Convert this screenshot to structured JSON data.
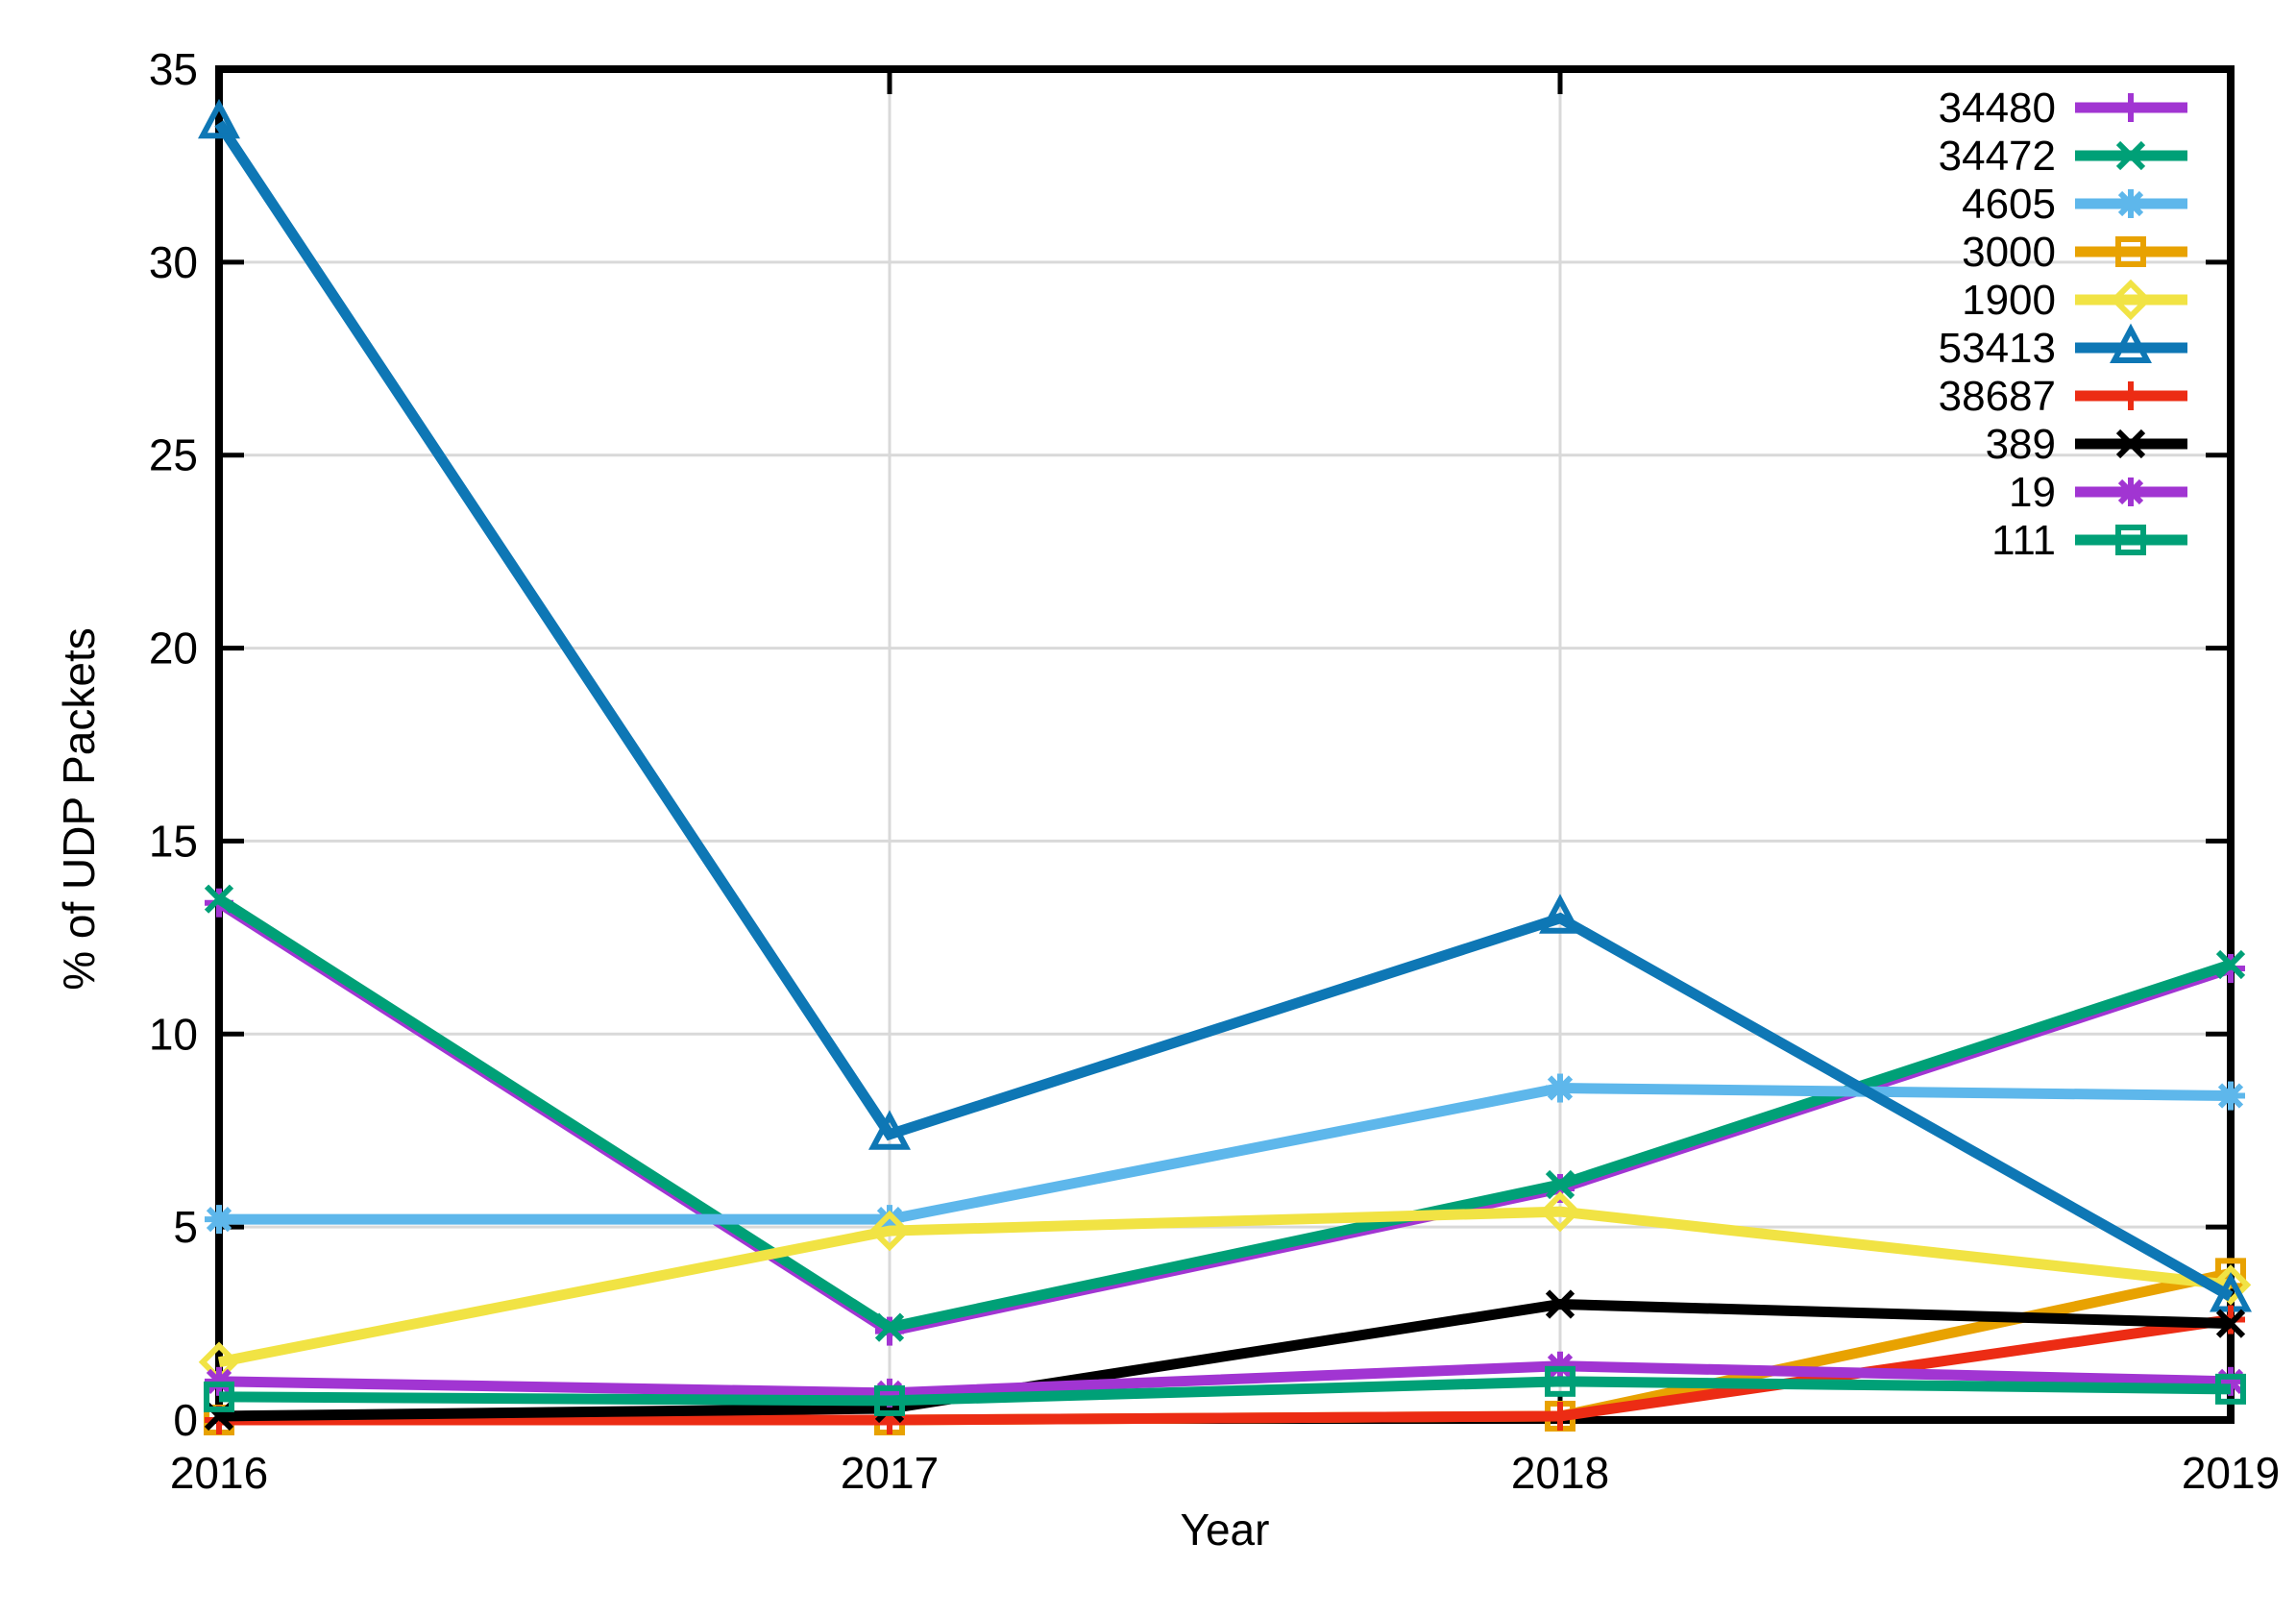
{
  "figure": {
    "background_color": "#ffffff",
    "grid_color": "#d9d9d9",
    "axis_color": "#000000"
  },
  "chart_data": {
    "type": "line",
    "title": "",
    "xlabel": "Year",
    "ylabel": "% of UDP Packets",
    "x": [
      2016,
      2017,
      2018,
      2019
    ],
    "xlim": [
      2016,
      2019
    ],
    "ylim": [
      0,
      35
    ],
    "xticks": [
      "2016",
      "2017",
      "2018",
      "2019"
    ],
    "yticks": [
      0,
      5,
      10,
      15,
      20,
      25,
      30,
      35
    ],
    "grid": true,
    "legend_position": "top-right-inside",
    "series": [
      {
        "name": "34480",
        "color": "#a135d2",
        "marker": "plus",
        "values": [
          13.4,
          2.3,
          6.0,
          11.7
        ]
      },
      {
        "name": "34472",
        "color": "#00a077",
        "marker": "cross",
        "values": [
          13.5,
          2.4,
          6.1,
          11.8
        ]
      },
      {
        "name": "4605",
        "color": "#5eb7eb",
        "marker": "asterisk",
        "values": [
          5.2,
          5.2,
          8.6,
          8.4
        ]
      },
      {
        "name": "3000",
        "color": "#e8a201",
        "marker": "square-open",
        "values": [
          0.0,
          0.0,
          0.1,
          3.8
        ]
      },
      {
        "name": "1900",
        "color": "#f1e344",
        "marker": "diamond-open",
        "values": [
          1.5,
          4.9,
          5.4,
          3.5
        ]
      },
      {
        "name": "53413",
        "color": "#0e77b5",
        "marker": "triangle-open",
        "values": [
          33.6,
          7.4,
          13.0,
          3.2
        ]
      },
      {
        "name": "38687",
        "color": "#ec2c14",
        "marker": "plus",
        "values": [
          0.0,
          0.0,
          0.1,
          2.6
        ]
      },
      {
        "name": "389",
        "color": "#000000",
        "marker": "cross",
        "values": [
          0.1,
          0.3,
          3.0,
          2.5
        ]
      },
      {
        "name": "19",
        "color": "#a135d2",
        "marker": "asterisk",
        "values": [
          1.0,
          0.7,
          1.4,
          1.0
        ]
      },
      {
        "name": "111",
        "color": "#00a077",
        "marker": "square-open",
        "values": [
          0.6,
          0.5,
          1.0,
          0.8
        ]
      }
    ]
  }
}
